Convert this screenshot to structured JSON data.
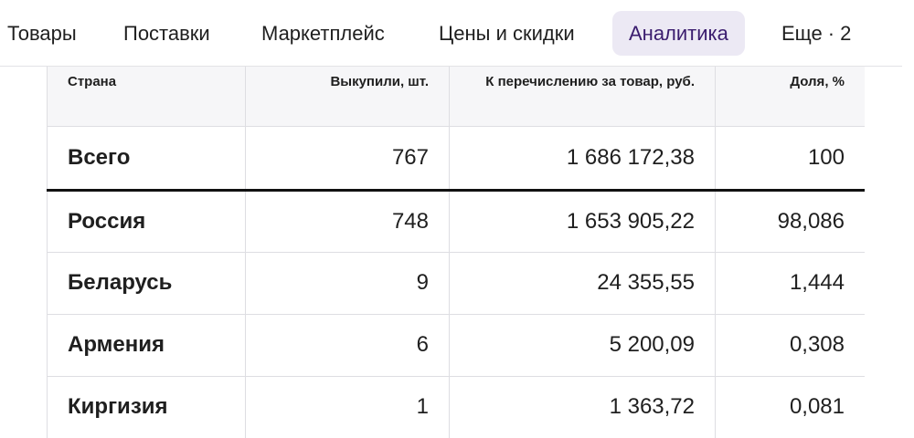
{
  "nav": {
    "tabs": [
      {
        "label": "Товары",
        "active": false
      },
      {
        "label": "Поставки",
        "active": false
      },
      {
        "label": "Маркетплейс",
        "active": false
      },
      {
        "label": "Цены и скидки",
        "active": false
      },
      {
        "label": "Аналитика",
        "active": true
      }
    ],
    "more": {
      "label": "Еще",
      "separator": "·",
      "count": "2"
    }
  },
  "table": {
    "headers": {
      "country": "Страна",
      "purchased": "Выкупили, шт.",
      "payout": "К перечислению за товар, руб.",
      "share": "Доля, %"
    },
    "total": {
      "country": "Всего",
      "purchased": "767",
      "payout": "1 686 172,38",
      "share": "100"
    },
    "rows": [
      {
        "country": "Россия",
        "purchased": "748",
        "payout": "1 653 905,22",
        "share": "98,086"
      },
      {
        "country": "Беларусь",
        "purchased": "9",
        "payout": "24 355,55",
        "share": "1,444"
      },
      {
        "country": "Армения",
        "purchased": "6",
        "payout": "5 200,09",
        "share": "0,308"
      },
      {
        "country": "Киргизия",
        "purchased": "1",
        "payout": "1 363,72",
        "share": "0,081"
      }
    ]
  },
  "colors": {
    "active_tab_bg": "#ece9f4",
    "active_tab_text": "#3a1c6e",
    "header_bg": "#f6f6f8",
    "grid": "#dedee2"
  }
}
